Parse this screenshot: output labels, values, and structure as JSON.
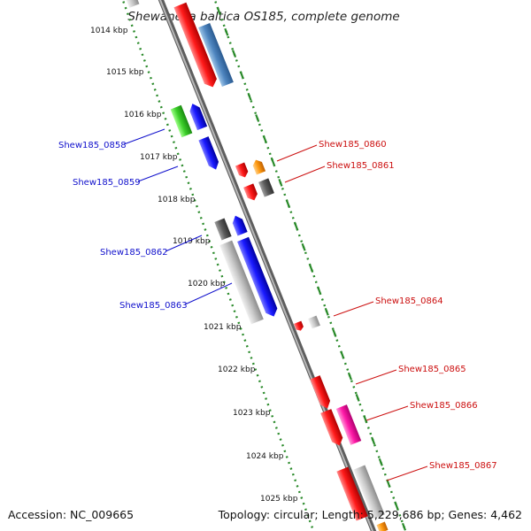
{
  "title": "Shewanella baltica OS185, complete genome",
  "footer": {
    "accession": "Accession: NC_009665",
    "topology": "Topology: circular; Length: 5,229,686 bp; Genes: 4,462"
  },
  "colors": {
    "backbone": "#8a8a8a",
    "ticks": "#2a8a2a",
    "left_label": "#1010cc",
    "right_label": "#cc1010"
  },
  "scale": {
    "tick_labels": [
      "1014 kbp",
      "1015 kbp",
      "1016 kbp",
      "1017 kbp",
      "1018 kbp",
      "1019 kbp",
      "1020 kbp",
      "1021 kbp",
      "1022 kbp",
      "1023 kbp",
      "1024 kbp",
      "1025 kbp"
    ]
  },
  "labels_left": [
    "Shew185_0858",
    "Shew185_0859",
    "Shew185_0862",
    "Shew185_0863"
  ],
  "labels_right": [
    "Shew185_0860",
    "Shew185_0861",
    "Shew185_0864",
    "Shew185_0865",
    "Shew185_0866",
    "Shew185_0867"
  ]
}
